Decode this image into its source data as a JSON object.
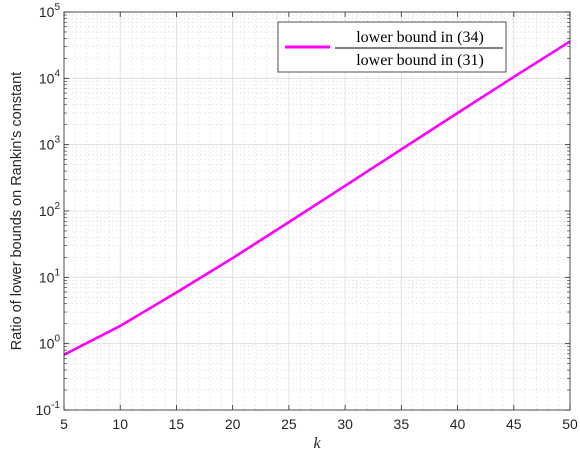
{
  "chart_data": {
    "type": "line",
    "title": "",
    "xlabel": "k",
    "ylabel": "Ratio of lower bounds on Rankin's constant",
    "xlim": [
      5,
      50
    ],
    "ylim": [
      0.1,
      100000
    ],
    "yscale": "log",
    "grid": true,
    "minor_grid": true,
    "legend_position": "top-right",
    "x_ticks": [
      "5",
      "10",
      "15",
      "20",
      "25",
      "30",
      "35",
      "40",
      "45",
      "50"
    ],
    "y_ticks": [
      {
        "base": "10",
        "exp": "-1",
        "value": 0.1
      },
      {
        "base": "10",
        "exp": "0",
        "value": 1
      },
      {
        "base": "10",
        "exp": "1",
        "value": 10
      },
      {
        "base": "10",
        "exp": "2",
        "value": 100
      },
      {
        "base": "10",
        "exp": "3",
        "value": 1000
      },
      {
        "base": "10",
        "exp": "4",
        "value": 10000
      },
      {
        "base": "10",
        "exp": "5",
        "value": 100000
      }
    ],
    "series": [
      {
        "name_numerator": "lower bound in (34)",
        "name_denominator": "lower bound in (31)",
        "color": "#ff00ff",
        "x": [
          5,
          10,
          15,
          20,
          25,
          30,
          35,
          40,
          45,
          50
        ],
        "y": [
          0.68,
          1.85,
          5.9,
          19.5,
          68,
          240,
          850,
          3000,
          10500,
          36000
        ]
      }
    ]
  }
}
